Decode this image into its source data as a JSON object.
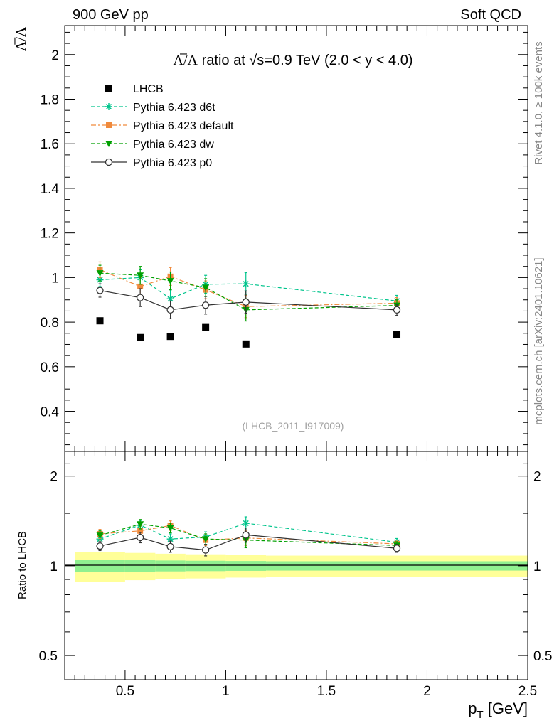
{
  "header": {
    "left_label": "900 GeV pp",
    "right_label": "Soft QCD"
  },
  "side_labels": {
    "rivet": "Rivet 4.1.0, ≥ 100k events",
    "mcplots": "mcplots.cern.ch [arXiv:2401.10621]"
  },
  "chart_data": [
    {
      "type": "scatter",
      "title": "Λ̅/Λ ratio at √s=0.9 TeV (2.0 < y < 4.0)",
      "title_parts": {
        "lambda_ratio": "Λ̅/Λ",
        "ratio_at": " ratio at ",
        "sqrt_glyph": "√",
        "energy": "s=0.9 TeV (2.0 < y < 4.0)"
      },
      "watermark": "(LHCB_2011_I917009)",
      "ylabel": "Λ̅/Λ",
      "ylim": [
        0.22,
        2.13
      ],
      "y_ticks": [
        "0.4",
        "0.6",
        "0.8",
        "1",
        "1.2",
        "1.4",
        "1.6",
        "1.8",
        "2"
      ],
      "xlim": [
        0.2,
        2.5
      ],
      "legend_position": "top-left",
      "series": [
        {
          "name": "LHCB",
          "marker": "square",
          "color": "#000000",
          "line": "none",
          "x": [
            0.375,
            0.575,
            0.725,
            0.9,
            1.1,
            1.85
          ],
          "y": [
            0.806,
            0.731,
            0.736,
            0.776,
            0.702,
            0.746
          ]
        },
        {
          "name": "Pythia 6.423 d6t",
          "marker": "star",
          "color": "#00c48c",
          "line": "dashed",
          "x": [
            0.375,
            0.575,
            0.725,
            0.9,
            1.1,
            1.85
          ],
          "y": [
            0.99,
            1.0,
            0.905,
            0.97,
            0.972,
            0.895
          ],
          "err": [
            0.03,
            0.035,
            0.04,
            0.04,
            0.05,
            0.025
          ]
        },
        {
          "name": "Pythia 6.423 default",
          "marker": "square-small",
          "color": "#f08a3c",
          "line": "dashdot",
          "x": [
            0.375,
            0.575,
            0.725,
            0.9,
            1.1,
            1.85
          ],
          "y": [
            1.035,
            0.96,
            1.005,
            0.945,
            0.87,
            0.885
          ],
          "err": [
            0.035,
            0.04,
            0.04,
            0.04,
            0.05,
            0.025
          ]
        },
        {
          "name": "Pythia 6.423 dw",
          "marker": "triangle-down",
          "color": "#00a000",
          "line": "dashed",
          "x": [
            0.375,
            0.575,
            0.725,
            0.9,
            1.1,
            1.85
          ],
          "y": [
            1.02,
            1.01,
            0.985,
            0.955,
            0.855,
            0.875
          ],
          "err": [
            0.035,
            0.04,
            0.04,
            0.04,
            0.05,
            0.025
          ]
        },
        {
          "name": "Pythia 6.423 p0",
          "marker": "open-circle",
          "color": "#333333",
          "line": "solid",
          "x": [
            0.375,
            0.575,
            0.725,
            0.9,
            1.1,
            1.85
          ],
          "y": [
            0.942,
            0.91,
            0.855,
            0.876,
            0.89,
            0.855
          ],
          "err": [
            0.03,
            0.04,
            0.04,
            0.04,
            0.05,
            0.025
          ]
        }
      ]
    },
    {
      "type": "scatter",
      "title": "",
      "ylabel": "Ratio to LHCB",
      "yscale": "log",
      "ylim": [
        0.415,
        2.42
      ],
      "y_ticks": [
        "0.5",
        "1",
        "2"
      ],
      "y_tick_values": [
        0.5,
        1,
        2
      ],
      "xlim": [
        0.2,
        2.5
      ],
      "xlabel": "p",
      "xlabel_sub": "T",
      "xlabel_unit": " [GeV]",
      "x_ticks": [
        "0.5",
        "1",
        "1.5",
        "2",
        "2.5"
      ],
      "x_tick_values": [
        0.5,
        1,
        1.5,
        2,
        2.5
      ],
      "uncertainty_bands": {
        "bin_edges": [
          0.25,
          0.5,
          0.65,
          0.8,
          1.0,
          1.2,
          2.5
        ],
        "inner_halfwidth": [
          0.048,
          0.044,
          0.042,
          0.04,
          0.038,
          0.036
        ],
        "outer_halfwidth": [
          0.115,
          0.105,
          0.098,
          0.093,
          0.087,
          0.082
        ],
        "inner_color": "#90f090",
        "outer_color": "#ffff99"
      },
      "series": [
        {
          "name": "Pythia 6.423 d6t",
          "marker": "star",
          "color": "#00c48c",
          "line": "dashed",
          "x": [
            0.375,
            0.575,
            0.725,
            0.9,
            1.1,
            1.85
          ],
          "y": [
            1.23,
            1.37,
            1.23,
            1.25,
            1.39,
            1.2
          ],
          "err": [
            0.04,
            0.05,
            0.05,
            0.05,
            0.07,
            0.035
          ]
        },
        {
          "name": "Pythia 6.423 default",
          "marker": "square-small",
          "color": "#f08a3c",
          "line": "dashdot",
          "x": [
            0.375,
            0.575,
            0.725,
            0.9,
            1.1,
            1.85
          ],
          "y": [
            1.28,
            1.31,
            1.365,
            1.22,
            1.24,
            1.185
          ],
          "err": [
            0.045,
            0.05,
            0.05,
            0.05,
            0.07,
            0.035
          ]
        },
        {
          "name": "Pythia 6.423 dw",
          "marker": "triangle-down",
          "color": "#00a000",
          "line": "dashed",
          "x": [
            0.375,
            0.575,
            0.725,
            0.9,
            1.1,
            1.85
          ],
          "y": [
            1.265,
            1.38,
            1.34,
            1.23,
            1.22,
            1.17
          ],
          "err": [
            0.045,
            0.05,
            0.05,
            0.05,
            0.07,
            0.035
          ]
        },
        {
          "name": "Pythia 6.423 p0",
          "marker": "open-circle",
          "color": "#333333",
          "line": "solid",
          "x": [
            0.375,
            0.575,
            0.725,
            0.9,
            1.1,
            1.85
          ],
          "y": [
            1.165,
            1.245,
            1.16,
            1.13,
            1.27,
            1.145
          ],
          "err": [
            0.04,
            0.05,
            0.05,
            0.05,
            0.07,
            0.035
          ]
        }
      ]
    }
  ]
}
